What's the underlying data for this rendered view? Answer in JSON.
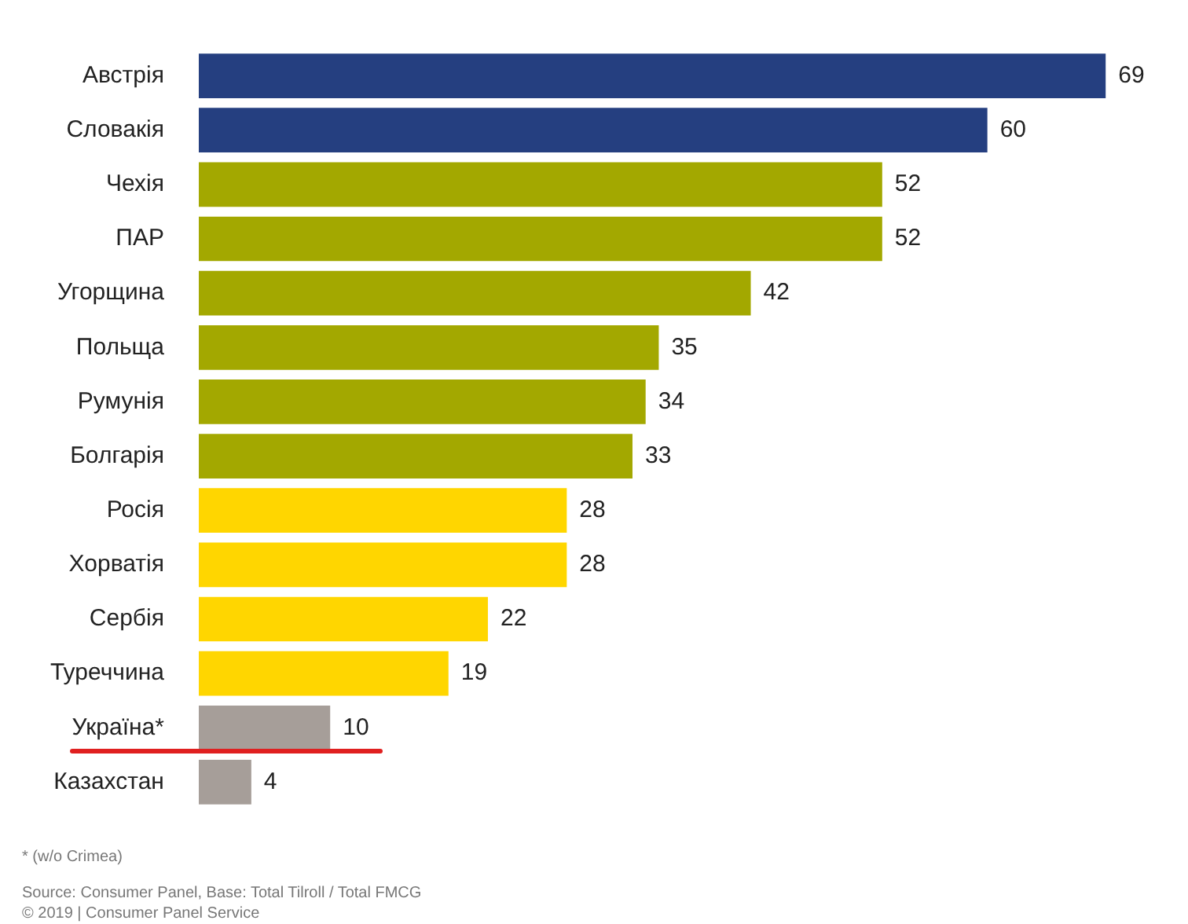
{
  "chart_data": {
    "type": "bar",
    "orientation": "horizontal",
    "categories": [
      "Австрія",
      "Словакія",
      "Чехія",
      "ПАР",
      "Угорщина",
      "Польща",
      "Румунія",
      "Болгарія",
      "Росія",
      "Хорватія",
      "Сербія",
      "Туреччина",
      "Україна*",
      "Казахстан"
    ],
    "values": [
      69,
      60,
      52,
      52,
      42,
      35,
      34,
      33,
      28,
      28,
      22,
      19,
      10,
      4
    ],
    "colors": [
      "#253f80",
      "#253f80",
      "#a3a800",
      "#a3a800",
      "#a3a800",
      "#a3a800",
      "#a3a800",
      "#a3a800",
      "#ffd600",
      "#ffd600",
      "#ffd600",
      "#ffd600",
      "#a69e99",
      "#a69e99"
    ],
    "data_labels": true,
    "legend": false,
    "annotations": [
      "* (w/o Crimea)",
      "Source: Consumer Panel, Base: Total Tilroll / Total FMCG",
      "© 2019 | Consumer Panel Service"
    ]
  }
}
